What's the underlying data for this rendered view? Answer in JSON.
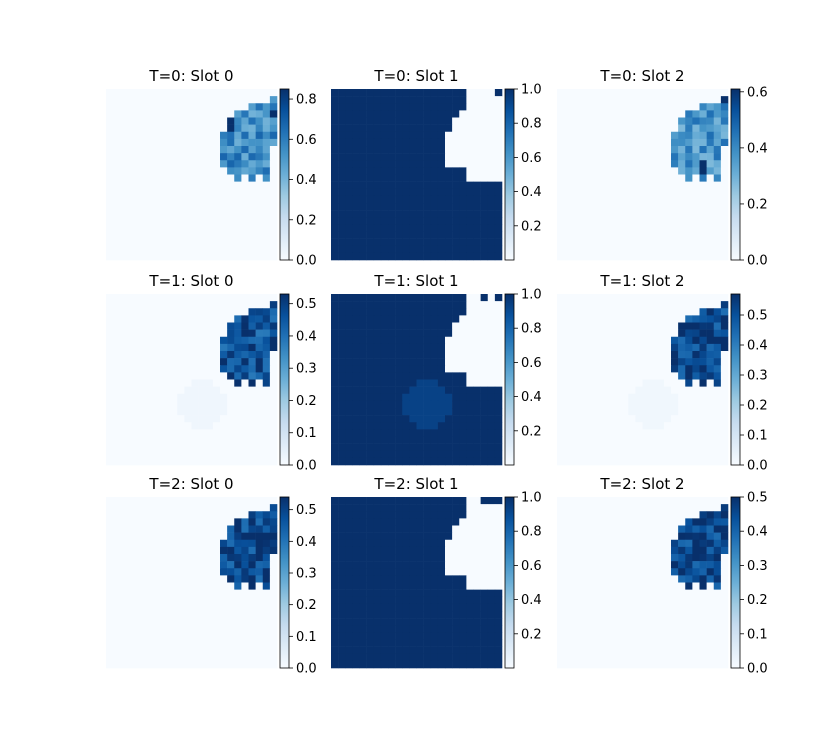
{
  "chart_data": {
    "type": "heatmap",
    "layout": {
      "rows": 3,
      "cols": 3
    },
    "colormap": "Blues",
    "colormap_colors": [
      "#f7fbff",
      "#deebf7",
      "#c6dbef",
      "#9ecae1",
      "#6baed6",
      "#4292c6",
      "#2171b5",
      "#08519c",
      "#08306b"
    ],
    "grid_size": 24,
    "panels": [
      {
        "title": "T=0: Slot 0",
        "vmin": 0.0,
        "vmax": 0.85,
        "ticks": [
          "0.0",
          "0.2",
          "0.4",
          "0.6",
          "0.8"
        ],
        "tick_values": [
          0.0,
          0.2,
          0.4,
          0.6,
          0.8
        ],
        "kind": "blob",
        "blob_value": 0.55,
        "background": 0.0,
        "secondary": 0.0
      },
      {
        "title": "T=0: Slot 1",
        "vmin": 0.0,
        "vmax": 1.0,
        "ticks": [
          "0.2",
          "0.4",
          "0.6",
          "0.8",
          "1.0"
        ],
        "tick_values": [
          0.2,
          0.4,
          0.6,
          0.8,
          1.0
        ],
        "kind": "inverse",
        "blob_value": 0.0,
        "background": 1.0,
        "secondary": 1.0
      },
      {
        "title": "T=0: Slot 2",
        "vmin": 0.0,
        "vmax": 0.61,
        "ticks": [
          "0.0",
          "0.2",
          "0.4",
          "0.6"
        ],
        "tick_values": [
          0.0,
          0.2,
          0.4,
          0.6
        ],
        "kind": "blob",
        "blob_value": 0.38,
        "background": 0.0,
        "secondary": 0.0
      },
      {
        "title": "T=1: Slot 0",
        "vmin": 0.0,
        "vmax": 0.53,
        "ticks": [
          "0.0",
          "0.1",
          "0.2",
          "0.3",
          "0.4",
          "0.5"
        ],
        "tick_values": [
          0.0,
          0.1,
          0.2,
          0.3,
          0.4,
          0.5
        ],
        "kind": "blob",
        "blob_value": 0.47,
        "background": 0.0,
        "secondary": 0.02
      },
      {
        "title": "T=1: Slot 1",
        "vmin": 0.0,
        "vmax": 1.0,
        "ticks": [
          "0.2",
          "0.4",
          "0.6",
          "0.8",
          "1.0"
        ],
        "tick_values": [
          0.2,
          0.4,
          0.6,
          0.8,
          1.0
        ],
        "kind": "inverse",
        "blob_value": 0.0,
        "background": 1.0,
        "secondary": 0.93
      },
      {
        "title": "T=1: Slot 2",
        "vmin": 0.0,
        "vmax": 0.57,
        "ticks": [
          "0.0",
          "0.1",
          "0.2",
          "0.3",
          "0.4",
          "0.5"
        ],
        "tick_values": [
          0.0,
          0.1,
          0.2,
          0.3,
          0.4,
          0.5
        ],
        "kind": "blob",
        "blob_value": 0.53,
        "background": 0.0,
        "secondary": 0.02
      },
      {
        "title": "T=2: Slot 0",
        "vmin": 0.0,
        "vmax": 0.54,
        "ticks": [
          "0.0",
          "0.1",
          "0.2",
          "0.3",
          "0.4",
          "0.5"
        ],
        "tick_values": [
          0.0,
          0.1,
          0.2,
          0.3,
          0.4,
          0.5
        ],
        "kind": "blob",
        "blob_value": 0.5,
        "background": 0.0,
        "secondary": 0.0
      },
      {
        "title": "T=2: Slot 1",
        "vmin": 0.0,
        "vmax": 1.0,
        "ticks": [
          "0.2",
          "0.4",
          "0.6",
          "0.8",
          "1.0"
        ],
        "tick_values": [
          0.2,
          0.4,
          0.6,
          0.8,
          1.0
        ],
        "kind": "inverse",
        "blob_value": 0.0,
        "background": 1.0,
        "secondary": 1.0
      },
      {
        "title": "T=2: Slot 2",
        "vmin": 0.0,
        "vmax": 0.5,
        "ticks": [
          "0.0",
          "0.1",
          "0.2",
          "0.3",
          "0.4",
          "0.5"
        ],
        "tick_values": [
          0.0,
          0.1,
          0.2,
          0.3,
          0.4,
          0.5
        ],
        "kind": "blob",
        "blob_value": 0.47,
        "background": 0.0,
        "secondary": 0.0
      }
    ]
  }
}
